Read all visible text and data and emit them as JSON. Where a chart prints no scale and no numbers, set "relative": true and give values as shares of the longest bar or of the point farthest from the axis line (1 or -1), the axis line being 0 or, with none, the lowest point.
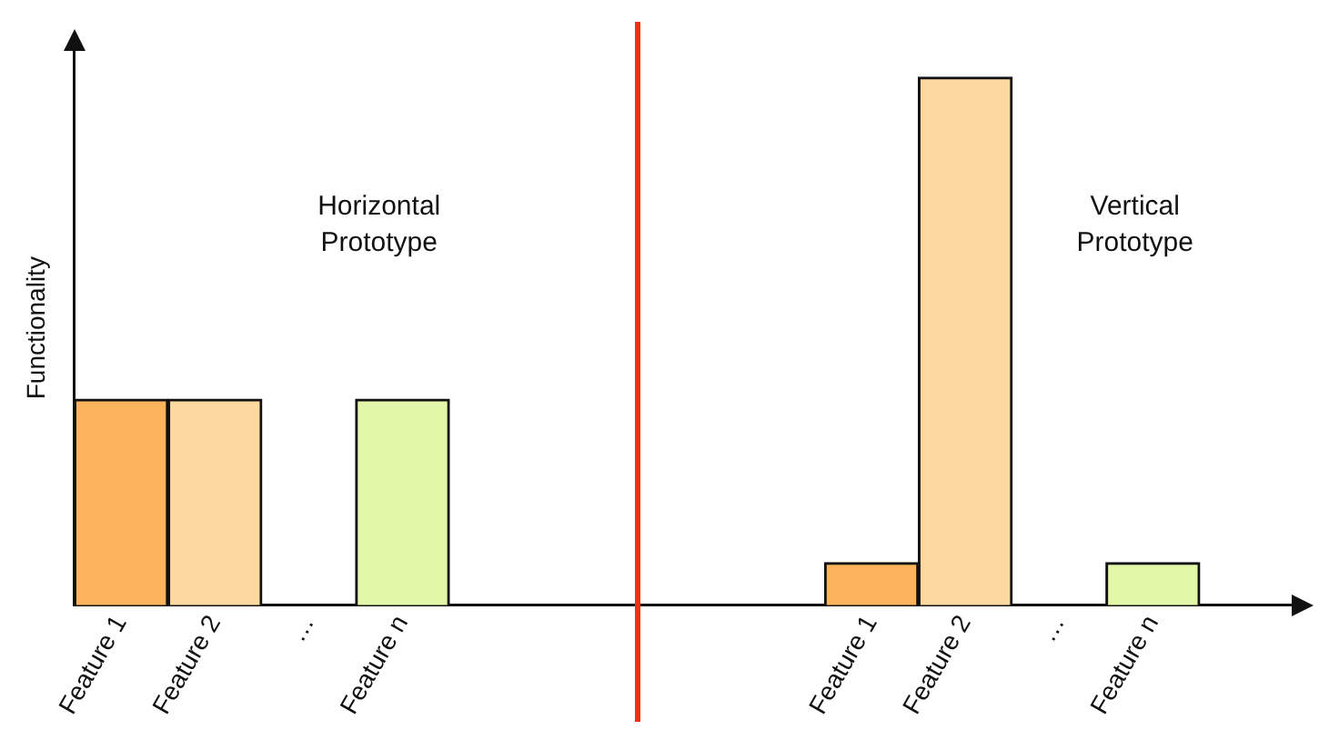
{
  "chart_data": {
    "type": "bar",
    "relative": true,
    "ylabel": "Functionality",
    "categories": [
      "Feature 1",
      "Feature 2",
      "…",
      "Feature n",
      null,
      null,
      null,
      null,
      "Feature 1",
      "Feature 2",
      "…",
      "Feature n",
      null
    ],
    "values": [
      0.39,
      0.39,
      null,
      0.39,
      null,
      null,
      null,
      null,
      0.08,
      1,
      null,
      0.08,
      null
    ],
    "colors": [
      "#fbb45c",
      "#fdd9a0",
      "#ffffff",
      "#e2f7a8",
      "#ffffff",
      "#ffffff",
      "#ffffff",
      "#ffffff",
      "#fbb45c",
      "#fdd9a0",
      "#ffffff",
      "#e2f7a8",
      "#ffffff"
    ],
    "annotations": [
      "Horizontal\nPrototype",
      "Vertical\nPrototype"
    ],
    "grid": false,
    "legend": false
  }
}
